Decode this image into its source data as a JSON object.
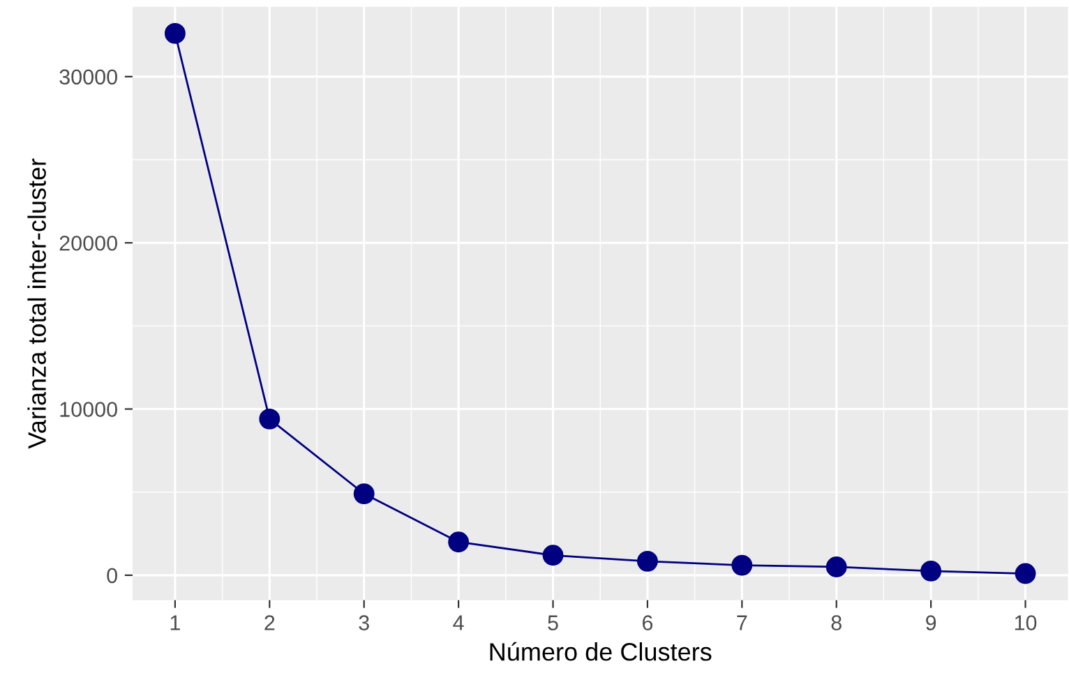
{
  "chart_data": {
    "type": "line",
    "xlabel": "Número de Clusters",
    "ylabel": "Varianza total inter-cluster",
    "x": [
      1,
      2,
      3,
      4,
      5,
      6,
      7,
      8,
      9,
      10
    ],
    "series": [
      {
        "color": "#000080",
        "values": [
          32600,
          9400,
          4900,
          2000,
          1200,
          840,
          600,
          500,
          250,
          100
        ]
      }
    ],
    "xlim": [
      0.55,
      10.45
    ],
    "xticks": [
      1,
      2,
      3,
      4,
      5,
      6,
      7,
      8,
      9,
      10
    ],
    "ylim": [
      -1500,
      34200
    ],
    "yticks": [
      0,
      10000,
      20000,
      30000
    ],
    "grid": true,
    "marker": "circle",
    "line_style": "solid"
  }
}
